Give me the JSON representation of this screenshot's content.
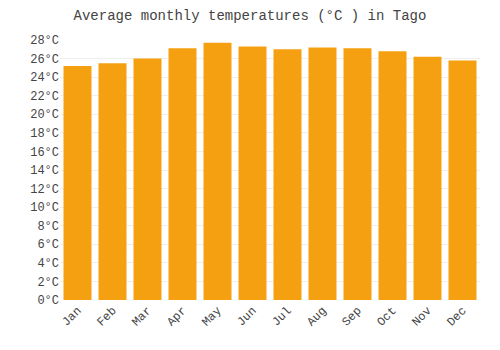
{
  "chart_data": {
    "type": "bar",
    "title": "Average monthly temperatures (°C ) in Tago",
    "categories": [
      "Jan",
      "Feb",
      "Mar",
      "Apr",
      "May",
      "Jun",
      "Jul",
      "Aug",
      "Sep",
      "Oct",
      "Nov",
      "Dec"
    ],
    "values": [
      25.2,
      25.5,
      26.0,
      27.1,
      27.7,
      27.3,
      27.0,
      27.2,
      27.1,
      26.8,
      26.2,
      25.8
    ],
    "color": "#F5A010",
    "ylim": [
      0,
      28
    ],
    "yticks": [
      {
        "value": 0,
        "label": "0°C"
      },
      {
        "value": 2,
        "label": "2°C"
      },
      {
        "value": 4,
        "label": "4°C"
      },
      {
        "value": 6,
        "label": "6°C"
      },
      {
        "value": 8,
        "label": "8°C"
      },
      {
        "value": 10,
        "label": "10°C"
      },
      {
        "value": 12,
        "label": "12°C"
      },
      {
        "value": 14,
        "label": "14°C"
      },
      {
        "value": 16,
        "label": "16°C"
      },
      {
        "value": 18,
        "label": "18°C"
      },
      {
        "value": 20,
        "label": "20°C"
      },
      {
        "value": 22,
        "label": "22°C"
      },
      {
        "value": 24,
        "label": "24°C"
      },
      {
        "value": 26,
        "label": "26°C"
      },
      {
        "value": 28,
        "label": "28°C"
      }
    ],
    "grid": true
  }
}
